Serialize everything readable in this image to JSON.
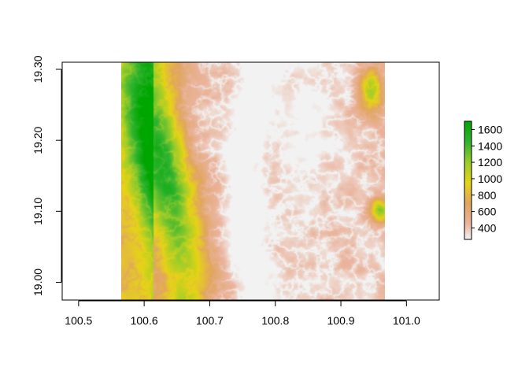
{
  "chart_data": {
    "type": "heatmap",
    "title": "",
    "xlabel": "",
    "ylabel": "",
    "xlim": [
      100.475,
      101.05
    ],
    "ylim": [
      18.975,
      19.31
    ],
    "raster_extent": {
      "x": [
        100.565,
        100.967
      ],
      "y": [
        18.975,
        19.31
      ]
    },
    "x_ticks": [
      {
        "value": 100.5,
        "label": "100.5"
      },
      {
        "value": 100.6,
        "label": "100.6"
      },
      {
        "value": 100.7,
        "label": "100.7"
      },
      {
        "value": 100.8,
        "label": "100.8"
      },
      {
        "value": 100.9,
        "label": "100.9"
      },
      {
        "value": 101.0,
        "label": "101.0"
      }
    ],
    "y_ticks": [
      {
        "value": 19.0,
        "label": "19.00"
      },
      {
        "value": 19.1,
        "label": "19.10"
      },
      {
        "value": 19.2,
        "label": "19.20"
      },
      {
        "value": 19.3,
        "label": "19.30"
      }
    ],
    "legend": {
      "placement": "right",
      "range": [
        260,
        1700
      ],
      "ticks": [
        {
          "value": 400,
          "label": "400"
        },
        {
          "value": 600,
          "label": "600"
        },
        {
          "value": 800,
          "label": "800"
        },
        {
          "value": 1000,
          "label": "1000"
        },
        {
          "value": 1200,
          "label": "1200"
        },
        {
          "value": 1400,
          "label": "1400"
        },
        {
          "value": 1600,
          "label": "1600"
        }
      ]
    },
    "colormap": [
      {
        "value": 260,
        "color": "#f2f2f2"
      },
      {
        "value": 450,
        "color": "#eab49d"
      },
      {
        "value": 700,
        "color": "#e1a560"
      },
      {
        "value": 950,
        "color": "#e6d317"
      },
      {
        "value": 1200,
        "color": "#9acc2a"
      },
      {
        "value": 1450,
        "color": "#2fb32f"
      },
      {
        "value": 1700,
        "color": "#00a600"
      }
    ],
    "grid": false
  }
}
